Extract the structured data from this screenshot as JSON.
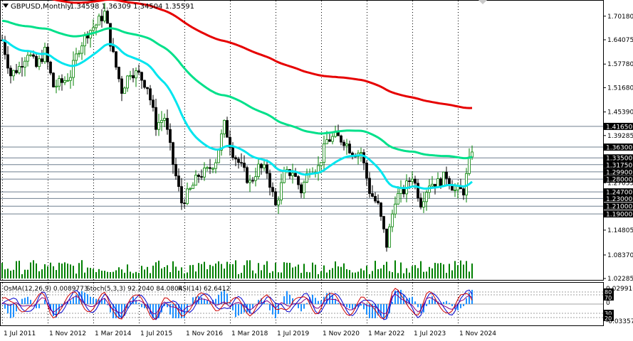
{
  "header": {
    "title": "GBPUSD,Monthly",
    "ohlc": "1.34598 1.36309 1.34504 1.35591"
  },
  "colors": {
    "bull": "#008000",
    "bear": "#000000",
    "ema_fast": "#00e5ee",
    "ema_mid": "#00e08a",
    "ema_slow": "#e60000",
    "level": "#6f7f8f",
    "volume": "#008000",
    "osma": "#1e90ff",
    "stoch_main": "#0000cd",
    "stoch_signal": "#cc0000",
    "rsi": "#800080",
    "axis_tag_bg": "#000000",
    "axis_tag_text": "#ffffff"
  },
  "price_axis": {
    "ticks": [
      "1.70180",
      "1.64075",
      "1.57780",
      "1.51680",
      "1.45390",
      "1.39285",
      "1.33350",
      "1.27055",
      "1.21000",
      "1.14805",
      "1.08370",
      "1.02285"
    ],
    "tags": [
      "1.41650",
      "1.36300",
      "1.33500",
      "1.31750",
      "1.29900",
      "1.28000",
      "1.24700",
      "1.23000",
      "1.21000",
      "1.19000"
    ]
  },
  "time_axis": [
    "1 Jul 2011",
    "1 Nov 2012",
    "1 Mar 2014",
    "1 Jul 2015",
    "1 Nov 2016",
    "1 Mar 2018",
    "1 Jul 2019",
    "1 Nov 2020",
    "1 Mar 2022",
    "1 Jul 2023",
    "1 Nov 2024"
  ],
  "indicator": {
    "label_osma": "OsMA(12,26,9) 0.0089773",
    "label_stoch": "Stoch(5,3,3) 92.2040 84.0804",
    "label_rsi": "RSI(14) 62.6412",
    "axis": [
      "0.029916",
      "0",
      "-0.033575"
    ],
    "level_tags": [
      "80",
      "70",
      "30",
      "20"
    ]
  },
  "chart_data": {
    "type": "candlestick",
    "x": [
      "2011-07",
      "2011-10",
      "2012-01",
      "2012-04",
      "2012-07",
      "2012-10",
      "2013-01",
      "2013-04",
      "2013-07",
      "2013-10",
      "2014-01",
      "2014-04",
      "2014-07",
      "2014-10",
      "2015-01",
      "2015-04",
      "2015-07",
      "2015-10",
      "2016-01",
      "2016-04",
      "2016-07",
      "2016-10",
      "2017-01",
      "2017-04",
      "2017-07",
      "2017-10",
      "2018-01",
      "2018-04",
      "2018-07",
      "2018-10",
      "2019-01",
      "2019-04",
      "2019-07",
      "2019-10",
      "2020-01",
      "2020-04",
      "2020-07",
      "2020-10",
      "2021-01",
      "2021-04",
      "2021-07",
      "2021-10",
      "2022-01",
      "2022-04",
      "2022-07",
      "2022-10",
      "2023-01",
      "2023-04",
      "2023-07",
      "2023-10",
      "2024-01",
      "2024-04",
      "2024-07",
      "2024-10",
      "2025-01",
      "2025-04"
    ],
    "close": [
      1.64,
      1.55,
      1.57,
      1.61,
      1.57,
      1.61,
      1.52,
      1.53,
      1.55,
      1.62,
      1.66,
      1.68,
      1.71,
      1.6,
      1.51,
      1.56,
      1.55,
      1.52,
      1.42,
      1.44,
      1.32,
      1.22,
      1.25,
      1.29,
      1.3,
      1.33,
      1.42,
      1.35,
      1.31,
      1.27,
      1.31,
      1.3,
      1.21,
      1.29,
      1.3,
      1.25,
      1.31,
      1.31,
      1.38,
      1.39,
      1.38,
      1.35,
      1.35,
      1.25,
      1.21,
      1.11,
      1.23,
      1.25,
      1.29,
      1.22,
      1.27,
      1.27,
      1.29,
      1.25,
      1.25,
      1.36
    ],
    "ema_fast_label": "",
    "levels": [
      1.4165,
      1.363,
      1.335,
      1.3175,
      1.299,
      1.28,
      1.247,
      1.23,
      1.21,
      1.19
    ],
    "ylim": [
      1.02285,
      1.74
    ]
  }
}
